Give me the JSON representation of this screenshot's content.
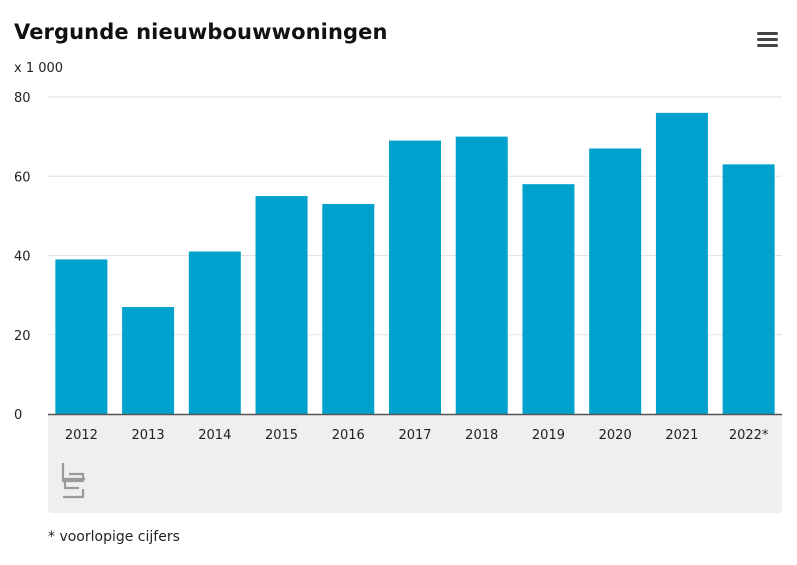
{
  "header": {
    "title": "Vergunde nieuwbouwwoningen",
    "unit": "x 1 000",
    "menu_icon": "hamburger-menu-icon"
  },
  "footnote": "* voorlopige cijfers",
  "logo": {
    "icon": "cbs-logo-icon"
  },
  "colors": {
    "bar": "#00a1cd",
    "grid": "#e3e3e3",
    "axis": "#555555",
    "panel": "#efefef"
  },
  "chart_data": {
    "type": "bar",
    "title": "Vergunde nieuwbouwwoningen",
    "xlabel": "",
    "ylabel": "x 1 000",
    "categories": [
      "2012",
      "2013",
      "2014",
      "2015",
      "2016",
      "2017",
      "2018",
      "2019",
      "2020",
      "2021",
      "2022*"
    ],
    "values": [
      39,
      27,
      41,
      55,
      53,
      69,
      70,
      58,
      67,
      76,
      63
    ],
    "ylim": [
      0,
      80
    ],
    "yticks": [
      0,
      20,
      40,
      60,
      80
    ],
    "grid": true,
    "legend": "none"
  }
}
